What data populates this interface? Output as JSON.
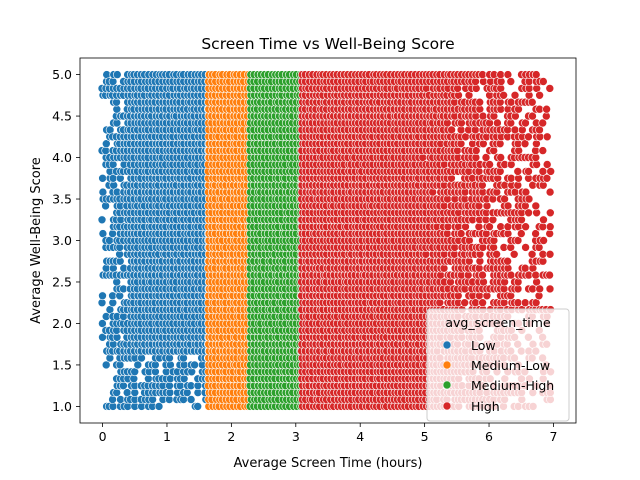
{
  "chart_data": {
    "type": "scatter",
    "title": "Screen Time vs Well-Being Score",
    "xlabel": "Average Screen Time (hours)",
    "ylabel": "Average Well-Being Score",
    "xlim": [
      -0.35,
      7.35
    ],
    "ylim": [
      0.8,
      5.2
    ],
    "xticks": [
      0,
      1,
      2,
      3,
      4,
      5,
      6,
      7
    ],
    "yticks": [
      1.0,
      1.5,
      2.0,
      2.5,
      3.0,
      3.5,
      4.0,
      4.5,
      5.0
    ],
    "ytick_labels": [
      "1.0",
      "1.5",
      "2.0",
      "2.5",
      "3.0",
      "3.5",
      "4.0",
      "4.5",
      "5.0"
    ],
    "grid": false,
    "legend": {
      "title": "avg_screen_time",
      "placement": "bottom-right"
    },
    "series": [
      {
        "name": "Low",
        "color": "#1f77b4",
        "x_range": [
          0.0,
          1.65
        ],
        "y_range": [
          1.0,
          5.0
        ]
      },
      {
        "name": "Medium-Low",
        "color": "#ff7f0e",
        "x_range": [
          1.65,
          2.3
        ],
        "y_range": [
          1.0,
          5.0
        ]
      },
      {
        "name": "Medium-High",
        "color": "#2ca02c",
        "x_range": [
          2.3,
          3.1
        ],
        "y_range": [
          1.0,
          5.0
        ]
      },
      {
        "name": "High",
        "color": "#d62728",
        "x_range": [
          3.1,
          7.0
        ],
        "y_range": [
          1.0,
          5.0
        ]
      }
    ]
  }
}
